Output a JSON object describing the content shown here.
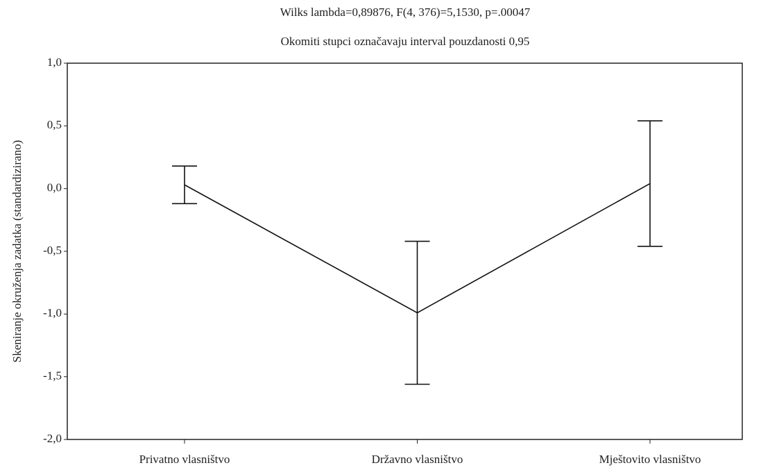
{
  "chart_data": {
    "type": "line",
    "title": "Wilks lambda=0,89876, F(4, 376)=5,1530, p=.00047",
    "subtitle": "Okomiti stupci označavaju interval pouzdanosti 0,95",
    "y_label": "Skeniranje okruženja zadatka (standardizirano)",
    "categories": [
      "Privatno vlasništvo",
      "Državno vlasništvo",
      "Mještovito vlasništvo"
    ],
    "series": [
      {
        "color": "#111111",
        "values": [
          0.03,
          -0.99,
          0.04
        ],
        "errors": [
          0.15,
          0.57,
          0.5
        ]
      }
    ],
    "ylim": [
      -2.0,
      1.0
    ],
    "yticks": [
      {
        "value": -2.0,
        "label": "-2,0"
      },
      {
        "value": -1.5,
        "label": "-1,5"
      },
      {
        "value": -1.0,
        "label": "-1,0"
      },
      {
        "value": -0.5,
        "label": "-0,5"
      },
      {
        "value": 0.0,
        "label": "0,0"
      },
      {
        "value": 0.5,
        "label": "0,5"
      },
      {
        "value": 1.0,
        "label": "1,0"
      }
    ],
    "grid": false
  }
}
